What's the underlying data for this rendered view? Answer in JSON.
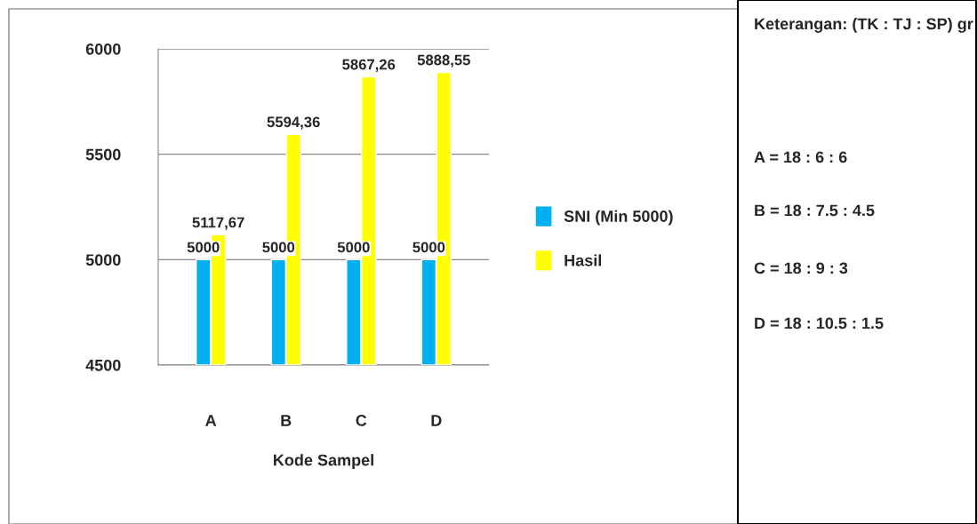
{
  "chart_data": {
    "type": "bar",
    "xlabel": "Kode Sampel",
    "categories": [
      "A",
      "B",
      "C",
      "D"
    ],
    "series": [
      {
        "name": "SNI (Min 5000)",
        "color": "#00b0f0",
        "values": [
          5000,
          5000,
          5000,
          5000
        ],
        "value_labels": [
          "5000",
          "5000",
          "5000",
          "5000"
        ]
      },
      {
        "name": "Hasil",
        "color": "#ffff00",
        "values": [
          5117.67,
          5594.36,
          5867.26,
          5888.55
        ],
        "value_labels": [
          "5117,67",
          "5594,36",
          "5867,26",
          "5888,55"
        ]
      }
    ],
    "ylim": [
      4500,
      6000
    ],
    "yticks": [
      4500,
      5000,
      5500,
      6000
    ],
    "grid": "y",
    "legend": "right",
    "annotations": [
      "Keterangan: (TK : TJ : SP) gr",
      "A = 18 : 6 : 6",
      "B = 18 : 7.5 : 4.5",
      "C = 18 : 9 : 3",
      "D = 18 : 10.5 : 1.5"
    ]
  }
}
